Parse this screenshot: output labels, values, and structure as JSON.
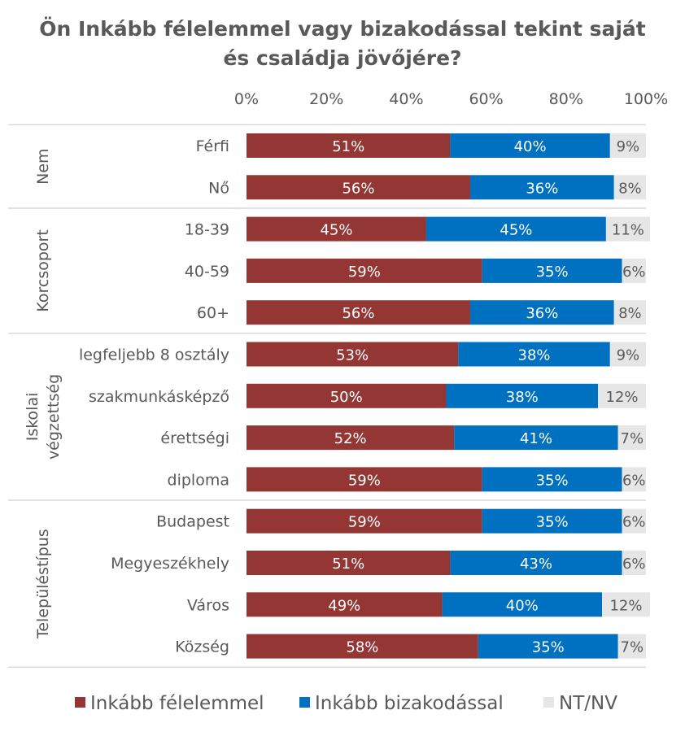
{
  "chart_data": {
    "type": "bar",
    "orientation": "horizontal",
    "stacked": true,
    "title": "Ön Inkább félelemmel vagy bizakodással tekint saját és családja jövőjére?",
    "title_lines": [
      "Ön Inkább félelemmel vagy bizakodással tekint saját",
      "és családja jövőjére?"
    ],
    "x_ticks": [
      "0%",
      "20%",
      "40%",
      "60%",
      "80%",
      "100%"
    ],
    "xlim": [
      0,
      100
    ],
    "x_axis_position": "top",
    "legend_position": "bottom",
    "grid": false,
    "groups": [
      {
        "name": "Nem",
        "name_lines": [
          "Nem"
        ],
        "categories": [
          "Férfi",
          "Nő"
        ]
      },
      {
        "name": "Korcsoport",
        "name_lines": [
          "Korcsoport"
        ],
        "categories": [
          "18-39",
          "40-59",
          "60+"
        ]
      },
      {
        "name": "Iskolai végzettség",
        "name_lines": [
          "Iskolai",
          "végzettség"
        ],
        "categories": [
          "legfeljebb 8 osztály",
          "szakmunkásképző",
          "érettségi",
          "diploma"
        ]
      },
      {
        "name": "Településtípus",
        "name_lines": [
          "Településtípus"
        ],
        "categories": [
          "Budapest",
          "Megyeszékhely",
          "Város",
          "Község"
        ]
      }
    ],
    "categories": [
      "Férfi",
      "Nő",
      "18-39",
      "40-59",
      "60+",
      "legfeljebb 8 osztály",
      "szakmunkásképző",
      "érettségi",
      "diploma",
      "Budapest",
      "Megyeszékhely",
      "Város",
      "Község"
    ],
    "series": [
      {
        "name": "Inkább félelemmel",
        "color": "#943634",
        "label_color": "#ffffff",
        "values": [
          51,
          56,
          45,
          59,
          56,
          53,
          50,
          52,
          59,
          59,
          51,
          49,
          58
        ],
        "labels": [
          "51%",
          "56%",
          "45%",
          "59%",
          "56%",
          "53%",
          "50%",
          "52%",
          "59%",
          "59%",
          "51%",
          "49%",
          "58%"
        ]
      },
      {
        "name": "Inkább bizakodással",
        "color": "#0070c0",
        "label_color": "#ffffff",
        "values": [
          40,
          36,
          45,
          35,
          36,
          38,
          38,
          41,
          35,
          35,
          43,
          40,
          35
        ],
        "labels": [
          "40%",
          "36%",
          "45%",
          "35%",
          "36%",
          "38%",
          "38%",
          "41%",
          "35%",
          "35%",
          "43%",
          "40%",
          "35%"
        ]
      },
      {
        "name": "NT/NV",
        "color": "#e6e6e6",
        "label_color": "#595959",
        "values": [
          9,
          8,
          11,
          6,
          8,
          9,
          12,
          7,
          6,
          6,
          6,
          12,
          7
        ],
        "labels": [
          "9%",
          "8%",
          "11%",
          "6%",
          "8%",
          "9%",
          "12%",
          "7%",
          "6%",
          "6%",
          "6%",
          "12%",
          "7%"
        ]
      }
    ]
  }
}
